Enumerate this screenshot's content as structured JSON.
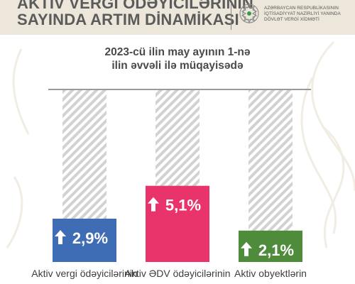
{
  "header": {
    "title_lines": [
      "AKTİV VERGİ ÖDƏYİCİLƏRİNİN",
      "SAYINDA ARTIM DİNAMİKASI"
    ],
    "org_lines": [
      "AZƏRBAYCAN RESPUBLİKASININ",
      "İQTİSADİYYAT NAZİRLİYİ YANINDA",
      "DÖVLƏT VERGİ XİDMƏTİ"
    ]
  },
  "subtitle_lines": [
    "2023-cü ilin may ayının 1-nə",
    "ilin əvvəli ilə müqayisədə"
  ],
  "colors": {
    "header_bg": "#ede7db",
    "blue": "#3f6db5",
    "pink": "#e8336b",
    "green": "#4e8b3a",
    "hatch": "#cfcfcf"
  },
  "chart_data": {
    "type": "bar",
    "title": "2023-cü ilin may ayının 1-nə ilin əvvəli ilə müqayisədə",
    "categories": [
      "Aktiv vergi ödəyicilərinin",
      "Aktiv ƏDV ödəyicilərinin",
      "Aktiv obyektlərin"
    ],
    "values": [
      2.9,
      5.1,
      2.1
    ],
    "value_labels": [
      "2,9%",
      "5,1%",
      "2,1%"
    ],
    "bar_colors": [
      "#3f6db5",
      "#e8336b",
      "#4e8b3a"
    ],
    "ylim": [
      0,
      11.5
    ],
    "grid": false,
    "legend": "none"
  }
}
